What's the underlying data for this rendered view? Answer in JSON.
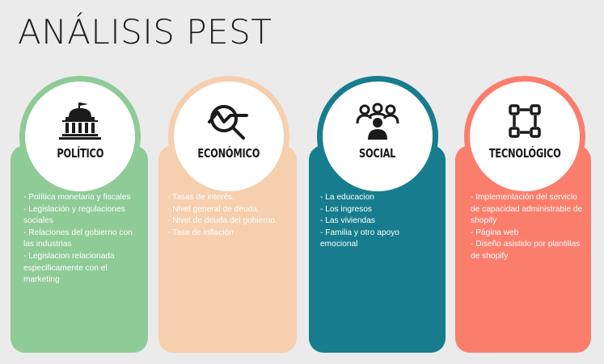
{
  "title": "ANÁLISIS PEST",
  "colors": {
    "politico": "#8fcb97",
    "economico": "#f6cfae",
    "social": "#177d8e",
    "tecnologico": "#fb7e6c"
  },
  "columns": [
    {
      "label": "POLÍTICO",
      "icon": "government-building-icon",
      "items": [
        "- Política monetaria y fiscales",
        "- Legislación y regulaciones sociales",
        "- Relaciones del gobierno con las industrias",
        "- Legislacion relacionada especificamente con el marketing"
      ]
    },
    {
      "label": "ECONÓMICO",
      "icon": "market-analysis-icon",
      "items": [
        "- Tasas de interés.",
        "- Nivel general de deuda.",
        "- Nivel de deuda del gobierno.",
        "- Tasa de inflación"
      ]
    },
    {
      "label": "SOCIAL",
      "icon": "people-group-icon",
      "items": [
        "- La educacion",
        "- Los ingresos",
        "- Las viviendas",
        "- Familia y otro apoyo emocional"
      ]
    },
    {
      "label": "TECNOLÓGICO",
      "icon": "circuit-nodes-icon",
      "items": [
        "- Implementación del servicio de capacidad administrable de shopify",
        "- Página web",
        "-  Diseño asistido por plantillas de shopify"
      ]
    }
  ]
}
